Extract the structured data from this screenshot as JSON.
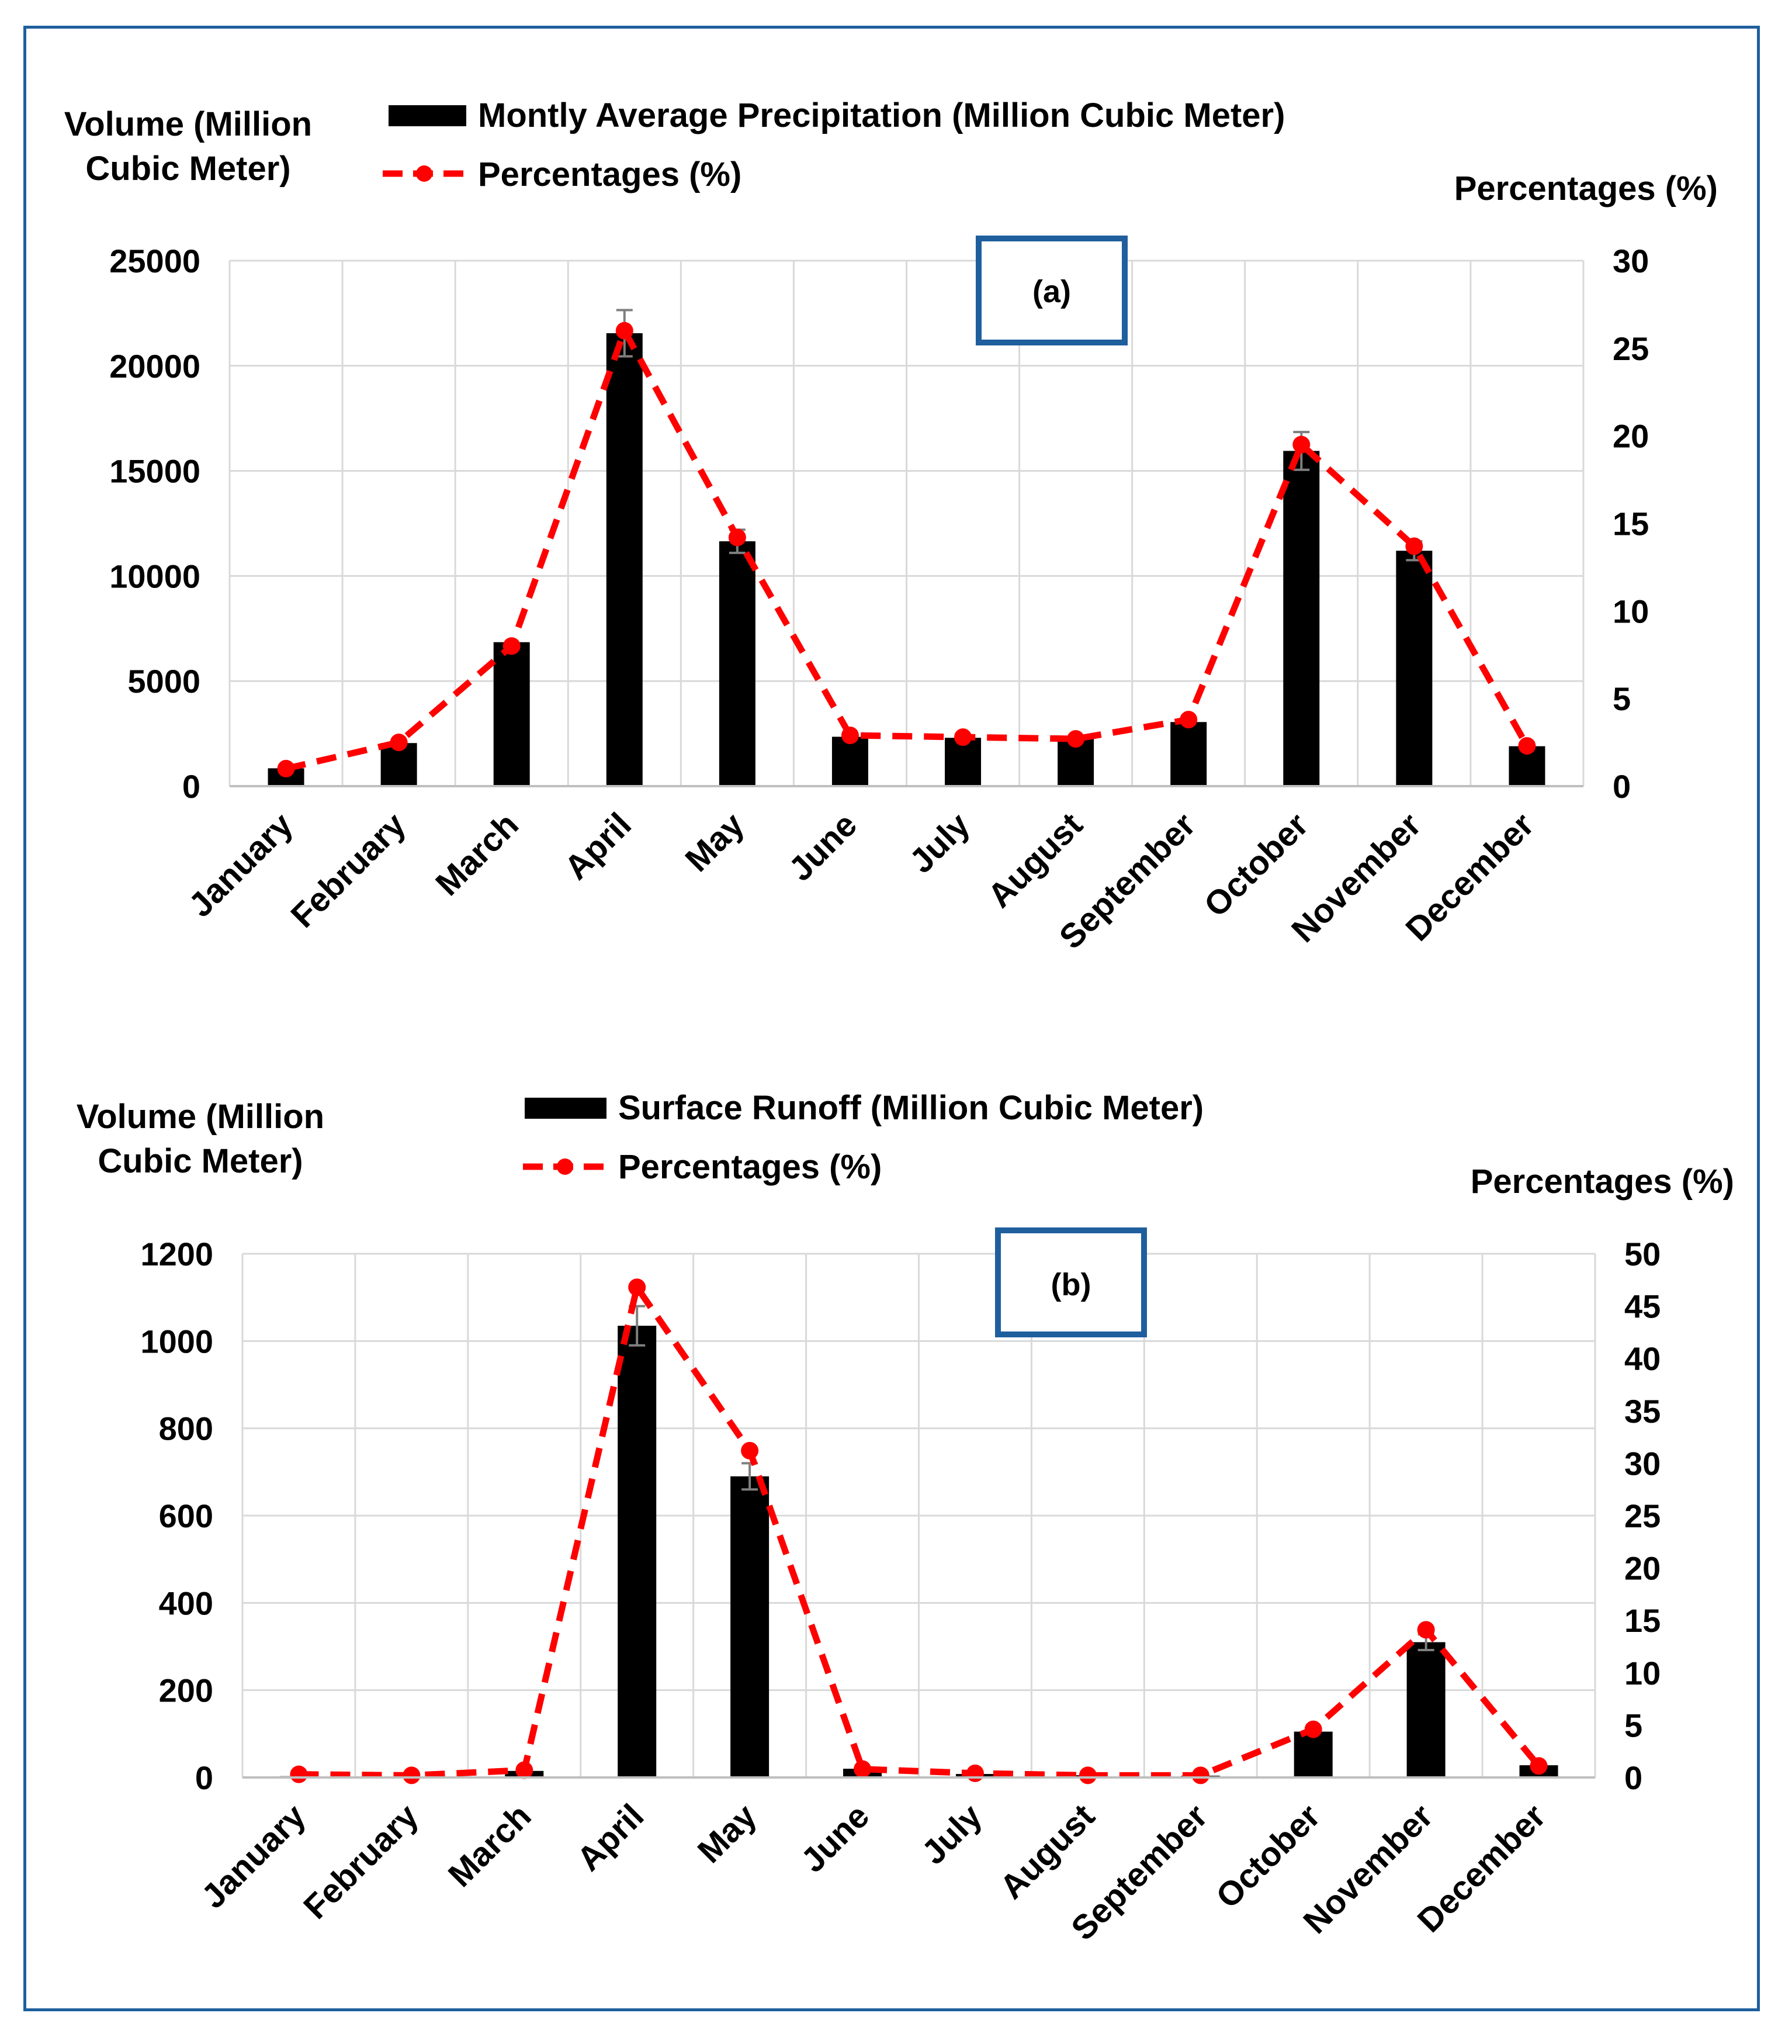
{
  "chart_data": [
    {
      "type": "bar",
      "panel_label": "(a)",
      "categories": [
        "January",
        "February",
        "March",
        "April",
        "May",
        "June",
        "July",
        "August",
        "September",
        "October",
        "November",
        "December"
      ],
      "y_axis_title": [
        "Volume (Million",
        "Cubic Meter)"
      ],
      "y2_axis_title": "Percentages (%)",
      "ylim": [
        0,
        25000
      ],
      "yticks": [
        "0",
        "5000",
        "10000",
        "15000",
        "20000",
        "25000"
      ],
      "y2lim": [
        0,
        30
      ],
      "y2ticks": [
        "0",
        "5",
        "10",
        "15",
        "20",
        "25",
        "30"
      ],
      "series": [
        {
          "name": "Montly Average Precipitation (Million Cubic Meter)",
          "kind": "bar",
          "color": "#000000",
          "values": [
            850,
            2050,
            6850,
            21550,
            11650,
            2350,
            2300,
            2250,
            3050,
            15950,
            11200,
            1900
          ],
          "errors": [
            0,
            0,
            0,
            1100,
            550,
            0,
            0,
            0,
            0,
            900,
            450,
            0
          ]
        },
        {
          "name": "Percentages (%)",
          "kind": "line",
          "axis": "right",
          "color": "#ff0000",
          "values": [
            1.0,
            2.5,
            8.0,
            26.0,
            14.2,
            2.9,
            2.8,
            2.7,
            3.8,
            19.5,
            13.7,
            2.3
          ]
        }
      ]
    },
    {
      "type": "bar",
      "panel_label": "(b)",
      "categories": [
        "January",
        "February",
        "March",
        "April",
        "May",
        "June",
        "July",
        "August",
        "September",
        "October",
        "November",
        "December"
      ],
      "y_axis_title": [
        "Volume (Million",
        "Cubic Meter)"
      ],
      "y2_axis_title": "Percentages (%)",
      "ylim": [
        0,
        1200
      ],
      "yticks": [
        "0",
        "200",
        "400",
        "600",
        "800",
        "1000",
        "1200"
      ],
      "y2lim": [
        0,
        50
      ],
      "y2ticks": [
        "0",
        "5",
        "10",
        "15",
        "20",
        "25",
        "30",
        "35",
        "40",
        "45",
        "50"
      ],
      "series": [
        {
          "name": "Surface Runoff (Million Cubic Meter)",
          "kind": "bar",
          "color": "#000000",
          "values": [
            3,
            2,
            15,
            1035,
            690,
            20,
            8,
            5,
            4,
            105,
            310,
            28
          ],
          "errors": [
            0,
            0,
            0,
            45,
            30,
            0,
            0,
            0,
            0,
            0,
            18,
            0
          ]
        },
        {
          "name": "Percentages (%)",
          "kind": "line",
          "axis": "right",
          "color": "#ff0000",
          "values": [
            0.3,
            0.2,
            0.7,
            46.8,
            31.2,
            0.8,
            0.4,
            0.2,
            0.2,
            4.6,
            14.1,
            1.1
          ]
        }
      ]
    }
  ]
}
